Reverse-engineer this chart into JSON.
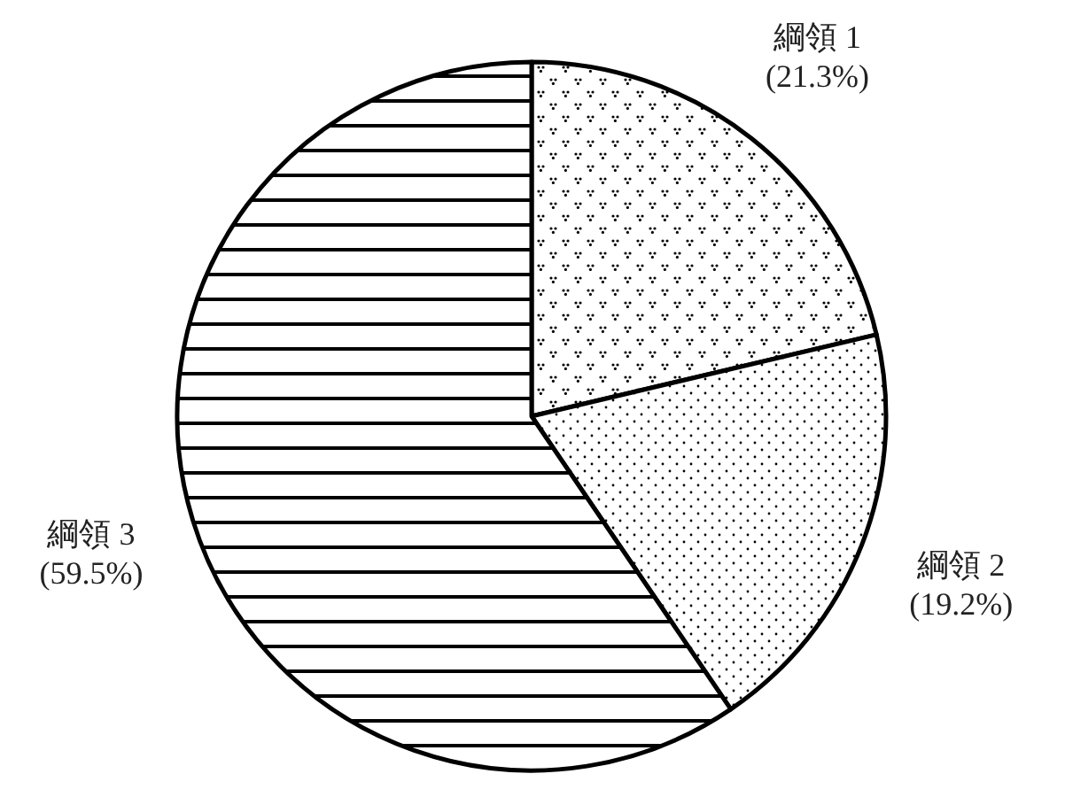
{
  "chart_data": {
    "type": "pie",
    "categories": [
      "綱領 1",
      "綱領 2",
      "綱領 3"
    ],
    "values": [
      21.3,
      19.2,
      59.5
    ],
    "value_labels": [
      "(21.3%)",
      "(19.2%)",
      "(59.5%)"
    ],
    "colors": [
      "#000000",
      "#000000",
      "#000000"
    ]
  }
}
